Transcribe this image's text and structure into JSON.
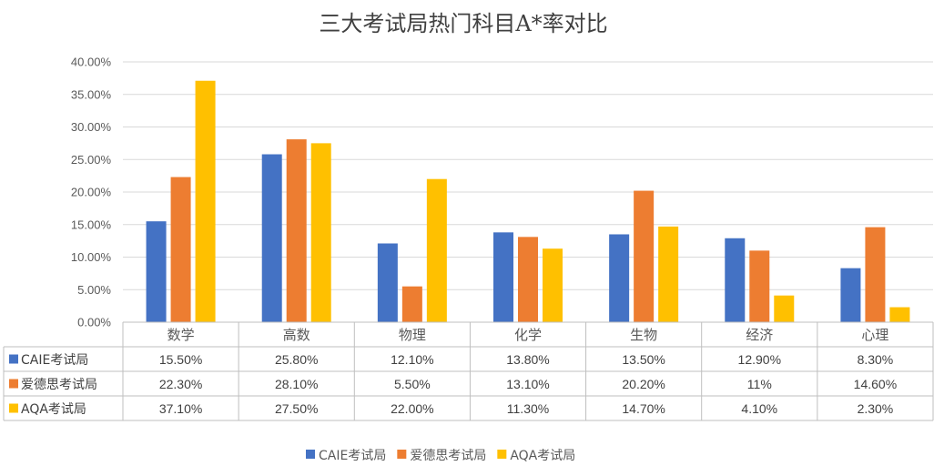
{
  "chart_data": {
    "type": "bar",
    "title": "三大考试局热门科目A*率对比",
    "categories": [
      "数学",
      "高数",
      "物理",
      "化学",
      "生物",
      "经济",
      "心理"
    ],
    "ylim": [
      0,
      40
    ],
    "yticks": [
      "0.00%",
      "5.00%",
      "10.00%",
      "15.00%",
      "20.00%",
      "25.00%",
      "30.00%",
      "35.00%",
      "40.00%"
    ],
    "grid": true,
    "legend_position": "bottom",
    "data_table": true,
    "series": [
      {
        "name": "CAIE考试局",
        "color": "#4472C4",
        "values": [
          15.5,
          25.8,
          12.1,
          13.8,
          13.5,
          12.9,
          8.3
        ],
        "labels": [
          "15.50%",
          "25.80%",
          "12.10%",
          "13.80%",
          "13.50%",
          "12.90%",
          "8.30%"
        ]
      },
      {
        "name": "爱德思考试局",
        "color": "#ED7D31",
        "values": [
          22.3,
          28.1,
          5.5,
          13.1,
          20.2,
          11,
          14.6
        ],
        "labels": [
          "22.30%",
          "28.10%",
          "5.50%",
          "13.10%",
          "20.20%",
          "11%",
          "14.60%"
        ]
      },
      {
        "name": "AQA考试局",
        "color": "#FFC000",
        "values": [
          37.1,
          27.5,
          22.0,
          11.3,
          14.7,
          4.1,
          2.3
        ],
        "labels": [
          "37.10%",
          "27.50%",
          "22.00%",
          "11.30%",
          "14.70%",
          "4.10%",
          "2.30%"
        ]
      }
    ]
  }
}
